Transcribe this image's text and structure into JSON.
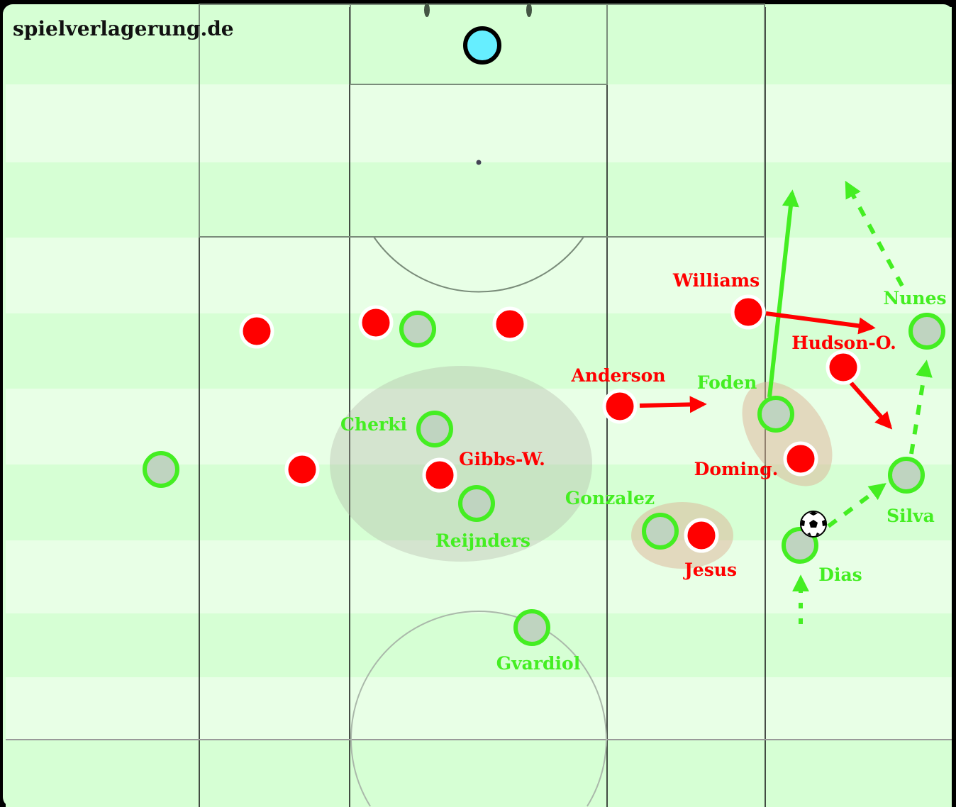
{
  "brand": "spielverlagerung.de",
  "colors": {
    "stripe_dark": "#d6ffd4",
    "stripe_light": "#e8ffe6",
    "red_team": "#ff0000",
    "green_team": "#44ee22",
    "green_fill": "#bfd4c0",
    "keeper": "#66eeff"
  },
  "red_players": [
    {
      "label": ""
    },
    {
      "label": ""
    },
    {
      "label": ""
    },
    {
      "label": ""
    },
    {
      "label": "Gibbs-W."
    },
    {
      "label": "Anderson"
    },
    {
      "label": "Williams"
    },
    {
      "label": "Hudson-O."
    },
    {
      "label": "Doming."
    },
    {
      "label": "Jesus"
    }
  ],
  "green_players": [
    {
      "label": ""
    },
    {
      "label": ""
    },
    {
      "label": "Cherki"
    },
    {
      "label": "Reijnders"
    },
    {
      "label": "Gonzalez"
    },
    {
      "label": "Gvardiol"
    },
    {
      "label": "Foden"
    },
    {
      "label": "Nunes"
    },
    {
      "label": "Silva"
    },
    {
      "label": "Dias"
    }
  ],
  "ball_icon": "soccer-ball-icon"
}
